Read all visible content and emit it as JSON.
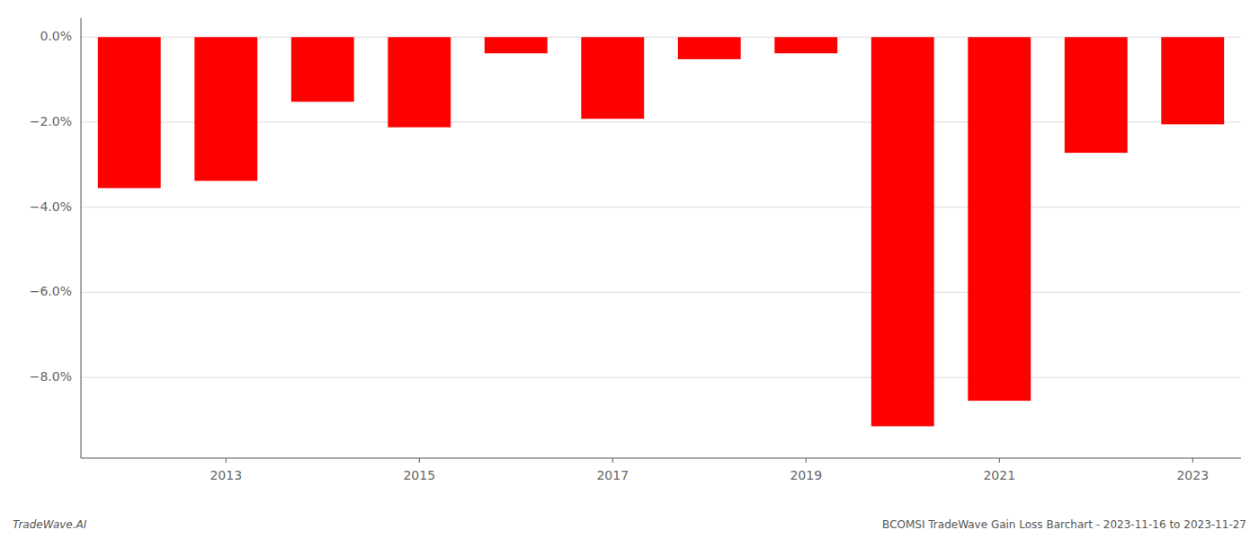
{
  "chart_data": {
    "type": "bar",
    "categories": [
      null,
      "2013",
      null,
      "2015",
      null,
      "2017",
      null,
      "2019",
      null,
      "2021",
      null,
      "2023"
    ],
    "values": [
      -3.55,
      -3.38,
      -1.52,
      -2.12,
      -0.38,
      -1.92,
      -0.52,
      -0.38,
      -9.15,
      -8.55,
      -2.72,
      -2.05
    ],
    "color": "#ff0000",
    "ylim": [
      -9.9,
      0.45
    ],
    "yticks": [
      {
        "value": 0.0,
        "label": "0.0%"
      },
      {
        "value": -2.0,
        "label": "−2.0%"
      },
      {
        "value": -4.0,
        "label": "−4.0%"
      },
      {
        "value": -6.0,
        "label": "−6.0%"
      },
      {
        "value": -8.0,
        "label": "−8.0%"
      }
    ],
    "grid": true,
    "annotations": [
      "TradeWave.AI",
      "BCOMSI TradeWave Gain Loss Barchart - 2023-11-16 to 2023-11-27"
    ]
  }
}
